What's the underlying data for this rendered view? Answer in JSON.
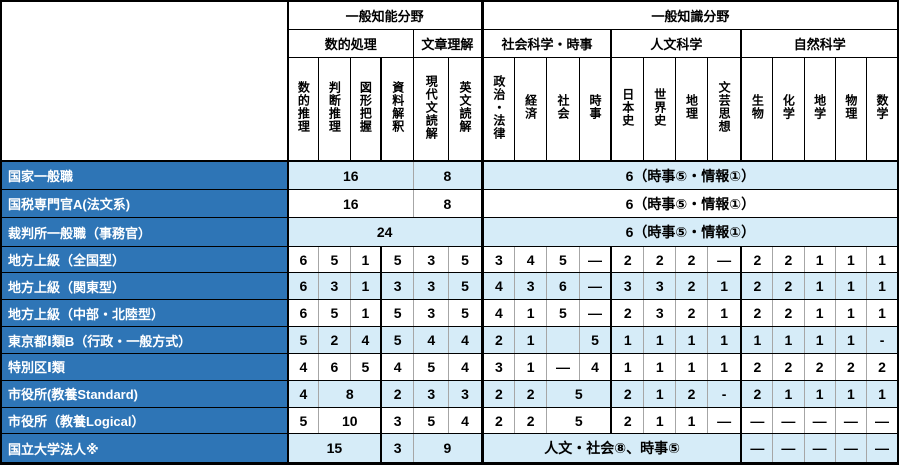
{
  "colors": {
    "row_label_background": "#2E75B6",
    "shaded_row_background": "#D6ECF8",
    "accent_number_pink": "#F1438F",
    "grid_line_gray": "#A6A6A6"
  },
  "table": {
    "corner_label": "",
    "header_groups_top": [
      {
        "label": "一般知能分野",
        "span": 6
      },
      {
        "label": "一般知識分野",
        "span": 13
      }
    ],
    "header_groups_sub": [
      {
        "label": "数的処理",
        "span": 4
      },
      {
        "label": "文章理解",
        "span": 2
      },
      {
        "label": "社会科学・時事",
        "span": 4
      },
      {
        "label": "人文科学",
        "span": 4
      },
      {
        "label": "自然科学",
        "span": 5
      }
    ],
    "columns": [
      "数的推理",
      "判断推理",
      "図形把握",
      "資料解釈",
      "現代文読解",
      "英文読解",
      "政治・法律",
      "経済",
      "社会",
      "時事",
      "日本史",
      "世界史",
      "地理",
      "文芸思想",
      "生物",
      "化学",
      "地学",
      "物理",
      "数学"
    ],
    "rows": [
      {
        "label": "国家一般職",
        "shade": true,
        "cells": [
          {
            "t": "16",
            "s": 4,
            "p": 1
          },
          {
            "t": "8",
            "s": 2
          },
          {
            "t": "6（時事⑤・情報①）",
            "s": 13
          }
        ]
      },
      {
        "label": "国税専門官A(法文系)",
        "shade": false,
        "cells": [
          {
            "t": "16",
            "s": 4,
            "p": 1
          },
          {
            "t": "8",
            "s": 2
          },
          {
            "t": "6（時事⑤・情報①）",
            "s": 13
          }
        ]
      },
      {
        "label": "裁判所一般職（事務官）",
        "shade": true,
        "cells": [
          {
            "t": "24",
            "s": 6,
            "p": 1
          },
          {
            "t": "6（時事⑤・情報①）",
            "s": 13
          }
        ]
      },
      {
        "label": "地方上級（全国型）",
        "shade": false,
        "cells": [
          {
            "t": "6",
            "p": 1
          },
          {
            "t": "5",
            "p": 1
          },
          {
            "t": "1",
            "p": 1
          },
          {
            "t": "5",
            "p": 1
          },
          {
            "t": "3"
          },
          {
            "t": "5"
          },
          {
            "t": "3"
          },
          {
            "t": "4"
          },
          {
            "t": "5"
          },
          {
            "t": "—"
          },
          {
            "t": "2"
          },
          {
            "t": "2"
          },
          {
            "t": "2"
          },
          {
            "t": "—"
          },
          {
            "t": "2"
          },
          {
            "t": "2"
          },
          {
            "t": "1"
          },
          {
            "t": "1"
          },
          {
            "t": "1"
          }
        ]
      },
      {
        "label": "地方上級（関東型）",
        "shade": true,
        "cells": [
          {
            "t": "6",
            "p": 1
          },
          {
            "t": "3",
            "p": 1
          },
          {
            "t": "1",
            "p": 1
          },
          {
            "t": "3",
            "p": 1
          },
          {
            "t": "3"
          },
          {
            "t": "5"
          },
          {
            "t": "4"
          },
          {
            "t": "3"
          },
          {
            "t": "6"
          },
          {
            "t": "—"
          },
          {
            "t": "3"
          },
          {
            "t": "3"
          },
          {
            "t": "2"
          },
          {
            "t": "1"
          },
          {
            "t": "2"
          },
          {
            "t": "2"
          },
          {
            "t": "1"
          },
          {
            "t": "1"
          },
          {
            "t": "1"
          }
        ]
      },
      {
        "label": "地方上級（中部・北陸型）",
        "shade": false,
        "cells": [
          {
            "t": "6",
            "p": 1
          },
          {
            "t": "5",
            "p": 1
          },
          {
            "t": "1",
            "p": 1
          },
          {
            "t": "5",
            "p": 1
          },
          {
            "t": "3"
          },
          {
            "t": "5"
          },
          {
            "t": "4"
          },
          {
            "t": "1"
          },
          {
            "t": "5"
          },
          {
            "t": "—"
          },
          {
            "t": "2"
          },
          {
            "t": "3"
          },
          {
            "t": "2"
          },
          {
            "t": "1"
          },
          {
            "t": "2"
          },
          {
            "t": "2"
          },
          {
            "t": "1"
          },
          {
            "t": "1"
          },
          {
            "t": "1"
          }
        ]
      },
      {
        "label": "東京都Ⅰ類B（行政・一般方式）",
        "shade": true,
        "cells": [
          {
            "t": "5",
            "p": 1
          },
          {
            "t": "2",
            "p": 1
          },
          {
            "t": "4",
            "p": 1
          },
          {
            "t": "5",
            "p": 1
          },
          {
            "t": "4"
          },
          {
            "t": "4"
          },
          {
            "t": "2"
          },
          {
            "t": "1"
          },
          {
            "t": ""
          },
          {
            "t": "5"
          },
          {
            "t": "1"
          },
          {
            "t": "1"
          },
          {
            "t": "1"
          },
          {
            "t": "1"
          },
          {
            "t": "1"
          },
          {
            "t": "1"
          },
          {
            "t": "1"
          },
          {
            "t": "1"
          },
          {
            "t": "-"
          }
        ]
      },
      {
        "label": "特別区Ⅰ類",
        "shade": false,
        "cells": [
          {
            "t": "4",
            "p": 1
          },
          {
            "t": "6",
            "p": 1
          },
          {
            "t": "5",
            "p": 1
          },
          {
            "t": "4",
            "p": 1
          },
          {
            "t": "5"
          },
          {
            "t": "4"
          },
          {
            "t": "3"
          },
          {
            "t": "1"
          },
          {
            "t": "—"
          },
          {
            "t": "4"
          },
          {
            "t": "1"
          },
          {
            "t": "1"
          },
          {
            "t": "1"
          },
          {
            "t": "1"
          },
          {
            "t": "2"
          },
          {
            "t": "2"
          },
          {
            "t": "2"
          },
          {
            "t": "2"
          },
          {
            "t": "2"
          }
        ]
      },
      {
        "label": "市役所(教養Standard)",
        "shade": true,
        "cells": [
          {
            "t": "4",
            "p": 1
          },
          {
            "t": "8",
            "s": 2,
            "p": 1
          },
          {
            "t": "2",
            "p": 1
          },
          {
            "t": "3"
          },
          {
            "t": "3"
          },
          {
            "t": "2"
          },
          {
            "t": "2"
          },
          {
            "t": "5",
            "s": 2
          },
          {
            "t": "2"
          },
          {
            "t": "1"
          },
          {
            "t": "2"
          },
          {
            "t": "-"
          },
          {
            "t": "2"
          },
          {
            "t": "1"
          },
          {
            "t": "1"
          },
          {
            "t": "1"
          },
          {
            "t": "1"
          }
        ]
      },
      {
        "label": "市役所（教養Logical）",
        "shade": false,
        "cells": [
          {
            "t": "5",
            "p": 1
          },
          {
            "t": "10",
            "s": 2,
            "p": 1
          },
          {
            "t": "3",
            "p": 1
          },
          {
            "t": "5"
          },
          {
            "t": "4"
          },
          {
            "t": "2"
          },
          {
            "t": "2"
          },
          {
            "t": "5",
            "s": 2
          },
          {
            "t": "2"
          },
          {
            "t": "1"
          },
          {
            "t": "1"
          },
          {
            "t": "—"
          },
          {
            "t": "—"
          },
          {
            "t": "—"
          },
          {
            "t": "—"
          },
          {
            "t": "—"
          },
          {
            "t": "—"
          }
        ]
      },
      {
        "label": "国立大学法人※",
        "shade": true,
        "cells": [
          {
            "t": "15",
            "s": 3,
            "p": 1
          },
          {
            "t": "3",
            "p": 1
          },
          {
            "t": "9",
            "s": 2
          },
          {
            "t": "人文・社会⑧、時事⑤",
            "s": 8
          },
          {
            "t": "—"
          },
          {
            "t": "—"
          },
          {
            "t": "—"
          },
          {
            "t": "—"
          },
          {
            "t": "—"
          }
        ]
      }
    ]
  }
}
